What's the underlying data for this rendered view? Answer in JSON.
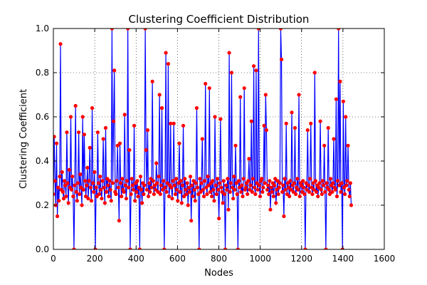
{
  "chart_data": {
    "type": "line",
    "title": "Clustering Coefficient Distribution",
    "xlabel": "Nodes",
    "ylabel": "Clustering Coefficient",
    "xlim": [
      0,
      1600
    ],
    "ylim": [
      0.0,
      1.0
    ],
    "xticks": [
      "0",
      "200",
      "400",
      "600",
      "800",
      "1000",
      "1200",
      "1400",
      "1600"
    ],
    "yticks": [
      "0.0",
      "0.2",
      "0.4",
      "0.6",
      "0.8",
      "1.0"
    ],
    "grid": true,
    "line_color": "#0000ff",
    "marker_color": "#ff0000",
    "series": [
      {
        "values": [
          0.25,
          0.51,
          0.31,
          0.2,
          0.48,
          0.15,
          0.28,
          0.22,
          0.33,
          0.93,
          0.27,
          0.35,
          0.26,
          0.23,
          0.31,
          0.29,
          0.24,
          0.53,
          0.3,
          0.21,
          0.36,
          0.28,
          0.6,
          0.27,
          0.33,
          0.24,
          0.0,
          0.29,
          0.65,
          0.26,
          0.22,
          0.3,
          0.53,
          0.25,
          0.34,
          0.28,
          0.2,
          0.6,
          0.27,
          0.52,
          0.31,
          0.24,
          0.29,
          0.37,
          0.23,
          0.31,
          0.46,
          0.28,
          0.22,
          0.64,
          0.3,
          0.26,
          0.35,
          0.0,
          0.28,
          0.24,
          0.53,
          0.3,
          0.25,
          0.33,
          0.27,
          0.23,
          0.31,
          0.5,
          0.28,
          0.21,
          0.55,
          0.26,
          0.32,
          0.29,
          0.24,
          0.31,
          0.27,
          0.22,
          1.0,
          0.3,
          0.58,
          0.81,
          0.26,
          0.25,
          0.31,
          0.47,
          0.28,
          0.13,
          0.48,
          0.3,
          0.24,
          0.32,
          0.27,
          0.26,
          0.61,
          0.29,
          0.23,
          0.31,
          1.0,
          0.28,
          0.45,
          0.0,
          0.25,
          0.32,
          0.29,
          0.27,
          0.56,
          0.22,
          0.3,
          0.26,
          0.31,
          0.24,
          0.28,
          0.0,
          0.33,
          0.27,
          0.21,
          0.3,
          0.25,
          0.29,
          1.0,
          0.45,
          0.27,
          0.54,
          0.24,
          0.3,
          0.26,
          0.32,
          0.28,
          0.76,
          0.31,
          0.25,
          0.29,
          0.27,
          0.39,
          0.3,
          0.26,
          0.33,
          0.7,
          0.25,
          0.29,
          0.64,
          0.27,
          0.31,
          0.0,
          0.28,
          0.89,
          0.26,
          0.3,
          0.84,
          0.24,
          0.29,
          0.57,
          0.28,
          0.23,
          0.31,
          0.57,
          0.29,
          0.25,
          0.32,
          0.27,
          0.22,
          0.3,
          0.48,
          0.26,
          0.31,
          0.21,
          0.29,
          0.56,
          0.24,
          0.32,
          0.27,
          0.25,
          0.3,
          0.2,
          0.28,
          0.26,
          0.33,
          0.13,
          0.29,
          0.24,
          0.31,
          0.27,
          0.22,
          0.3,
          0.64,
          0.28,
          0.25,
          0.0,
          0.32,
          0.26,
          0.3,
          0.5,
          0.27,
          0.24,
          0.31,
          0.75,
          0.28,
          0.25,
          0.33,
          0.29,
          0.73,
          0.26,
          0.3,
          0.24,
          0.31,
          0.27,
          0.22,
          0.6,
          0.29,
          0.25,
          0.32,
          0.27,
          0.14,
          0.3,
          0.59,
          0.28,
          0.26,
          0.21,
          0.31,
          0.25,
          0.0,
          0.29,
          0.27,
          0.32,
          0.18,
          0.89,
          0.26,
          0.3,
          0.8,
          0.28,
          0.23,
          0.33,
          0.27,
          0.47,
          0.3,
          0.25,
          0.0,
          0.31,
          0.28,
          0.69,
          0.26,
          0.29,
          0.24,
          0.32,
          0.73,
          0.27,
          0.28,
          0.3,
          0.25,
          0.31,
          0.41,
          0.27,
          0.29,
          0.58,
          0.26,
          0.32,
          0.83,
          0.28,
          0.25,
          0.81,
          0.3,
          0.27,
          1.0,
          0.29,
          0.24,
          0.31,
          0.32,
          0.26,
          0.28,
          0.56,
          0.3,
          0.7,
          0.54,
          0.27,
          0.29,
          0.25,
          0.31,
          0.18,
          0.28,
          0.26,
          0.3,
          0.24,
          0.29,
          0.32,
          0.21,
          0.27,
          0.31,
          0.25,
          0.28,
          0.3,
          1.0,
          0.86,
          0.26,
          0.29,
          0.15,
          0.32,
          0.27,
          0.57,
          0.25,
          0.3,
          0.28,
          0.24,
          0.31,
          0.27,
          0.62,
          0.29,
          0.26,
          0.3,
          0.55,
          0.25,
          0.28,
          0.32,
          0.27,
          0.7,
          0.24,
          0.3,
          0.29,
          0.26,
          0.31,
          0.28,
          0.25,
          0.0,
          0.3,
          0.27,
          0.54,
          0.29,
          0.26,
          0.32,
          0.57,
          0.28,
          0.25,
          0.3,
          0.27,
          0.8,
          0.31,
          0.26,
          0.29,
          0.24,
          0.28,
          0.3,
          0.58,
          0.27,
          0.25,
          0.31,
          0.29,
          0.47,
          0.26,
          0.0,
          0.3,
          0.28,
          0.55,
          0.27,
          0.25,
          0.32,
          0.29,
          0.26,
          0.3,
          0.5,
          0.28,
          0.27,
          0.68,
          0.24,
          0.31,
          1.0,
          0.29,
          0.76,
          0.26,
          0.3,
          0.0,
          0.67,
          0.28,
          0.25,
          0.6,
          0.29,
          0.31,
          0.47,
          0.27,
          0.24,
          0.3,
          0.2
        ]
      }
    ]
  }
}
